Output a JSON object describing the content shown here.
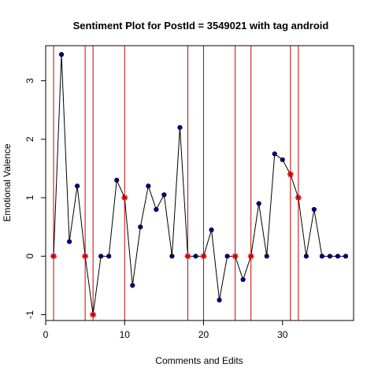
{
  "chart_data": {
    "type": "scatter",
    "title": "Sentiment Plot for PostId =  3549021  with tag  android",
    "xlabel": "Comments and Edits",
    "ylabel": "Emotional Valence",
    "xlim": [
      0,
      39
    ],
    "ylim": [
      -1.1,
      3.6
    ],
    "x_ticks": [
      0,
      10,
      20,
      30
    ],
    "y_ticks": [
      -1,
      0,
      1,
      2,
      3
    ],
    "grid": false,
    "legend": "none",
    "line_color": "#000000",
    "point_color": "#00008B",
    "edit_marker_color": "#CC0000",
    "vline_color": "#CC0000",
    "points": [
      {
        "x": 1,
        "y": 0,
        "edit": true
      },
      {
        "x": 2,
        "y": 3.45,
        "edit": false
      },
      {
        "x": 3,
        "y": 0.25,
        "edit": false
      },
      {
        "x": 4,
        "y": 1.2,
        "edit": false
      },
      {
        "x": 5,
        "y": 0,
        "edit": true
      },
      {
        "x": 6,
        "y": -1,
        "edit": true
      },
      {
        "x": 7,
        "y": 0,
        "edit": false
      },
      {
        "x": 8,
        "y": 0,
        "edit": false
      },
      {
        "x": 9,
        "y": 1.3,
        "edit": false
      },
      {
        "x": 10,
        "y": 1,
        "edit": true
      },
      {
        "x": 11,
        "y": -0.5,
        "edit": false
      },
      {
        "x": 12,
        "y": 0.5,
        "edit": false
      },
      {
        "x": 13,
        "y": 1.2,
        "edit": false
      },
      {
        "x": 14,
        "y": 0.8,
        "edit": false
      },
      {
        "x": 15,
        "y": 1.05,
        "edit": false
      },
      {
        "x": 16,
        "y": 0,
        "edit": false
      },
      {
        "x": 17,
        "y": 2.2,
        "edit": false
      },
      {
        "x": 18,
        "y": 0,
        "edit": true
      },
      {
        "x": 19,
        "y": 0,
        "edit": false
      },
      {
        "x": 20,
        "y": 0,
        "edit": true
      },
      {
        "x": 21,
        "y": 0.45,
        "edit": false
      },
      {
        "x": 22,
        "y": -0.75,
        "edit": false
      },
      {
        "x": 23,
        "y": 0,
        "edit": false
      },
      {
        "x": 24,
        "y": 0,
        "edit": true
      },
      {
        "x": 25,
        "y": -0.4,
        "edit": false
      },
      {
        "x": 26,
        "y": 0,
        "edit": true
      },
      {
        "x": 27,
        "y": 0.9,
        "edit": false
      },
      {
        "x": 28,
        "y": 0,
        "edit": false
      },
      {
        "x": 29,
        "y": 1.75,
        "edit": false
      },
      {
        "x": 30,
        "y": 1.65,
        "edit": false
      },
      {
        "x": 31,
        "y": 1.4,
        "edit": true
      },
      {
        "x": 32,
        "y": 1,
        "edit": true
      },
      {
        "x": 33,
        "y": 0,
        "edit": false
      },
      {
        "x": 34,
        "y": 0.8,
        "edit": false
      },
      {
        "x": 35,
        "y": 0,
        "edit": false
      },
      {
        "x": 36,
        "y": 0,
        "edit": false
      },
      {
        "x": 37,
        "y": 0,
        "edit": false
      },
      {
        "x": 38,
        "y": 0,
        "edit": false
      }
    ],
    "vlines": [
      1,
      5,
      6,
      10,
      18,
      20,
      24,
      26,
      31,
      32
    ]
  }
}
